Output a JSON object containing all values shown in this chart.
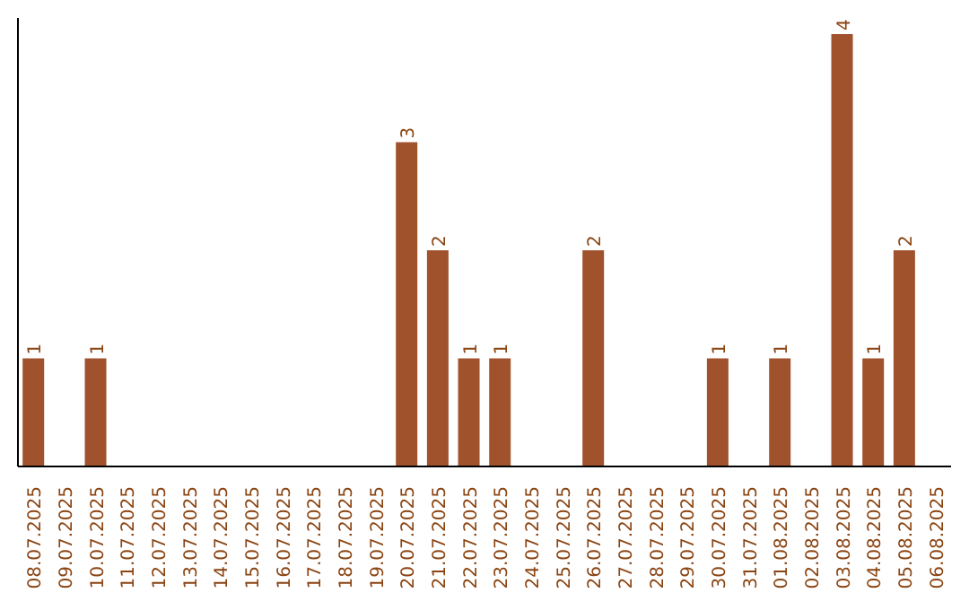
{
  "chart_data": {
    "type": "bar",
    "categories": [
      "08.07.2025",
      "09.07.2025",
      "10.07.2025",
      "11.07.2025",
      "12.07.2025",
      "13.07.2025",
      "14.07.2025",
      "15.07.2025",
      "16.07.2025",
      "17.07.2025",
      "18.07.2025",
      "19.07.2025",
      "20.07.2025",
      "21.07.2025",
      "22.07.2025",
      "23.07.2025",
      "24.07.2025",
      "25.07.2025",
      "26.07.2025",
      "27.07.2025",
      "28.07.2025",
      "29.07.2025",
      "30.07.2025",
      "31.07.2025",
      "01.08.2025",
      "02.08.2025",
      "03.08.2025",
      "04.08.2025",
      "05.08.2025",
      "06.08.2025"
    ],
    "values": [
      1,
      0,
      1,
      0,
      0,
      0,
      0,
      0,
      0,
      0,
      0,
      0,
      3,
      2,
      1,
      1,
      0,
      0,
      2,
      0,
      0,
      0,
      1,
      0,
      1,
      0,
      4,
      1,
      2,
      0
    ],
    "value_labels": [
      "1",
      null,
      "1",
      null,
      null,
      null,
      null,
      null,
      null,
      null,
      null,
      null,
      "3",
      "2",
      "1",
      "1",
      null,
      null,
      "2",
      null,
      null,
      null,
      "1",
      null,
      "1",
      null,
      "4",
      "1",
      "2",
      null
    ],
    "color": "#a0522d",
    "ylim": [
      0,
      4.15
    ],
    "tick_labels": "x",
    "grid": false,
    "legend": false
  }
}
